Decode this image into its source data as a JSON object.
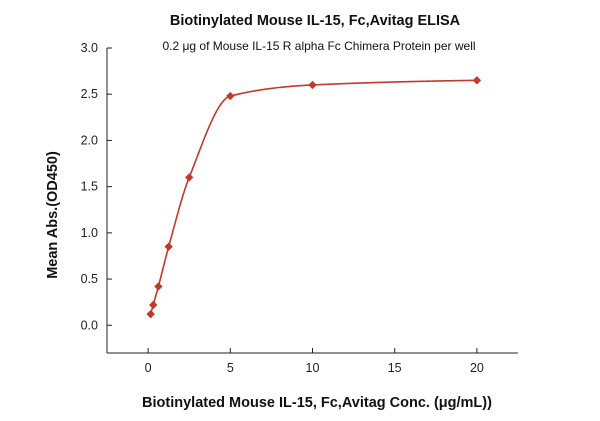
{
  "chart_data": {
    "type": "scatter",
    "title": "Biotinylated Mouse IL-15, Fc,Avitag ELISA",
    "subtitle": "0.2 μg of  Mouse IL-15 R alpha Fc Chimera Protein per well",
    "xlabel": "Biotinylated Mouse IL-15, Fc,Avitag Conc. (μg/mL))",
    "ylabel": "Mean Abs.(OD450)",
    "xlim": [
      -2.5,
      22.5
    ],
    "ylim": [
      -0.3,
      3.0
    ],
    "x_ticks": [
      0,
      5,
      10,
      15,
      20
    ],
    "y_ticks": [
      0.0,
      0.5,
      1.0,
      1.5,
      2.0,
      2.5,
      3.0
    ],
    "x_tick_labels": [
      "0",
      "5",
      "10",
      "15",
      "20"
    ],
    "y_tick_labels": [
      "0.0",
      "0.5",
      "1.0",
      "1.5",
      "2.0",
      "2.5",
      "3.0"
    ],
    "grid": false,
    "marker": "diamond",
    "color": "#c0392b",
    "series": [
      {
        "x": [
          0.156,
          0.313,
          0.625,
          1.25,
          2.5,
          5,
          10,
          20
        ],
        "y": [
          0.12,
          0.22,
          0.42,
          0.85,
          1.6,
          2.48,
          2.6,
          2.65
        ],
        "fit": "sigmoidal"
      }
    ]
  }
}
